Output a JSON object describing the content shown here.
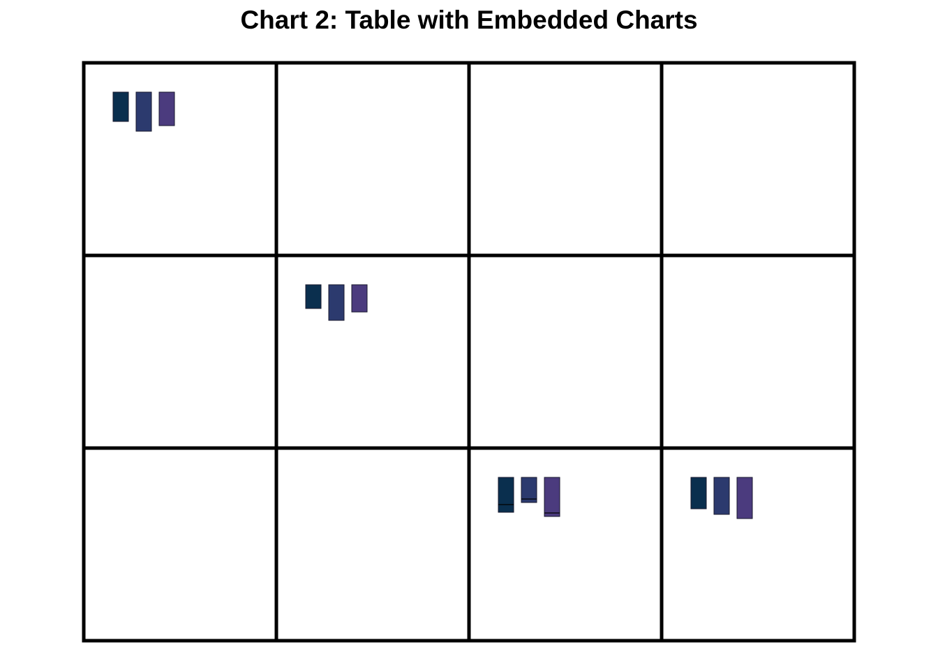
{
  "chart_data": {
    "type": "table",
    "title": "Chart 2: Table with Embedded Charts",
    "rows": 3,
    "columns": 4,
    "colors": [
      "#0a2f4e",
      "#2c3a6e",
      "#4b3b7e"
    ],
    "stroke_color": "#1a1a2e",
    "cells": [
      {
        "row": 0,
        "col": 0,
        "bars": [
          {
            "height": 42
          },
          {
            "height": 56
          },
          {
            "height": 48
          }
        ]
      },
      {
        "row": 1,
        "col": 1,
        "bars": [
          {
            "height": 34
          },
          {
            "height": 51
          },
          {
            "height": 39
          }
        ]
      },
      {
        "row": 2,
        "col": 2,
        "bars": [
          {
            "height": 50,
            "marker": 39
          },
          {
            "height": 36,
            "marker": 31
          },
          {
            "height": 56,
            "marker": 51
          }
        ]
      },
      {
        "row": 2,
        "col": 3,
        "bars": [
          {
            "height": 45
          },
          {
            "height": 53
          },
          {
            "height": 59
          }
        ]
      }
    ]
  }
}
